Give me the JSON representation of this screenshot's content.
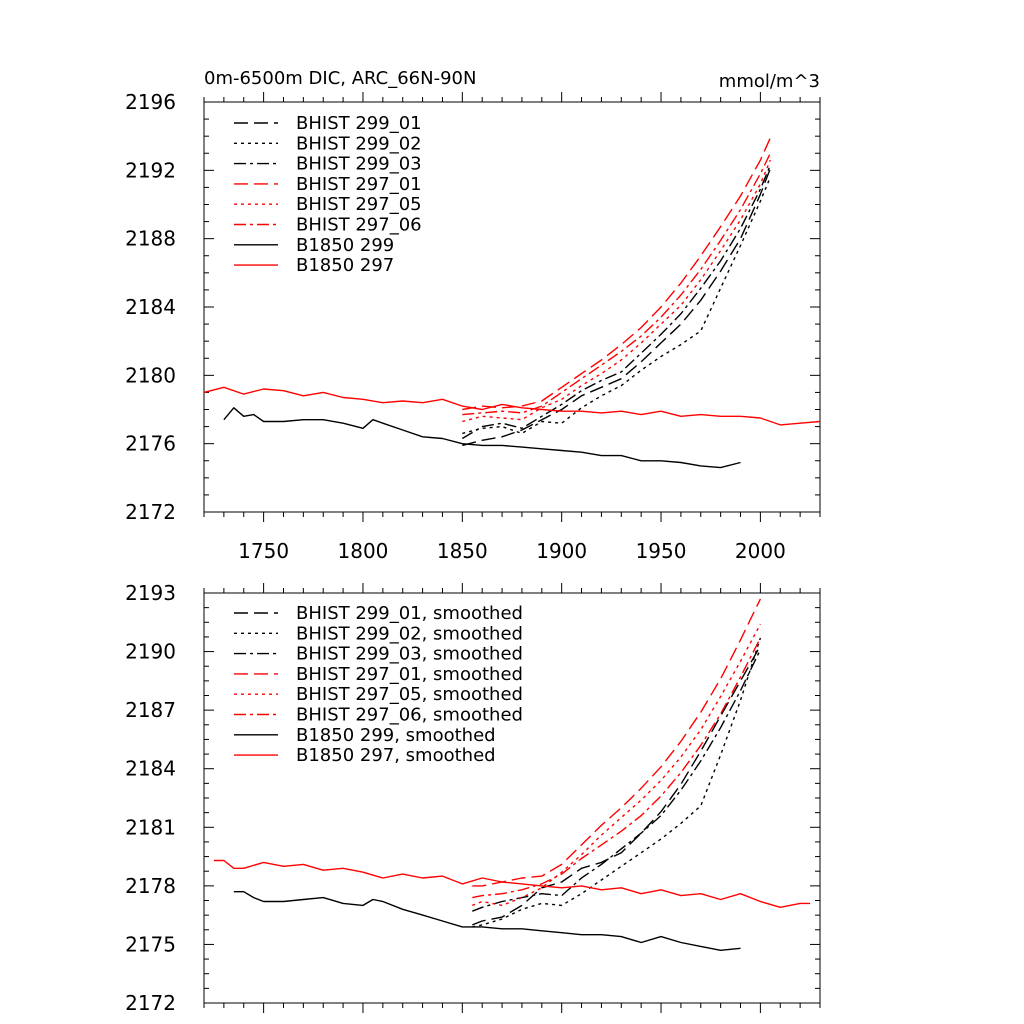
{
  "chart_data": [
    {
      "type": "line",
      "title": "0m-6500m DIC, ARC_66N-90N",
      "units": "mmol/m^3",
      "xlabel": "",
      "ylabel": "",
      "xlim": [
        1720,
        2030
      ],
      "ylim": [
        2172,
        2196
      ],
      "xticks": [
        1750,
        1800,
        1850,
        1900,
        1950,
        2000
      ],
      "yticks": [
        2172,
        2176,
        2180,
        2184,
        2188,
        2192,
        2196
      ],
      "legend_position": "top-left",
      "grid": false,
      "series": [
        {
          "name": "BHIST 299_01",
          "color": "#000000",
          "dash": "dash",
          "x": [
            1850,
            1860,
            1870,
            1880,
            1890,
            1900,
            1910,
            1920,
            1930,
            1940,
            1950,
            1960,
            1970,
            1980,
            1990,
            2000,
            2005
          ],
          "y": [
            2175.9,
            2176.2,
            2176.4,
            2176.8,
            2177.4,
            2178.0,
            2178.8,
            2179.3,
            2179.8,
            2180.8,
            2181.9,
            2183.0,
            2184.4,
            2186.1,
            2188.0,
            2190.6,
            2192.1
          ]
        },
        {
          "name": "BHIST 299_02",
          "color": "#000000",
          "dash": "dot",
          "x": [
            1850,
            1860,
            1870,
            1880,
            1890,
            1900,
            1910,
            1920,
            1930,
            1940,
            1950,
            1960,
            1970,
            1980,
            1990,
            2000,
            2005
          ],
          "y": [
            2176.6,
            2176.9,
            2177.0,
            2176.6,
            2177.3,
            2177.2,
            2178.1,
            2178.8,
            2179.4,
            2180.3,
            2181.1,
            2181.8,
            2182.6,
            2185.1,
            2187.6,
            2190.2,
            2191.6
          ]
        },
        {
          "name": "BHIST 299_03",
          "color": "#000000",
          "dash": "dashdot",
          "x": [
            1850,
            1860,
            1870,
            1880,
            1890,
            1900,
            1910,
            1920,
            1930,
            1940,
            1950,
            1960,
            1970,
            1980,
            1990,
            2000,
            2005
          ],
          "y": [
            2176.3,
            2177.0,
            2177.2,
            2176.9,
            2177.6,
            2178.3,
            2179.1,
            2179.7,
            2180.2,
            2181.3,
            2182.4,
            2183.6,
            2185.1,
            2186.7,
            2188.6,
            2190.9,
            2192.3
          ]
        },
        {
          "name": "BHIST 297_01",
          "color": "#ff0000",
          "dash": "dash",
          "x": [
            1850,
            1860,
            1870,
            1880,
            1890,
            1900,
            1910,
            1920,
            1930,
            1940,
            1950,
            1960,
            1970,
            1980,
            1990,
            2000,
            2005
          ],
          "y": [
            2178.0,
            2178.2,
            2178.1,
            2178.2,
            2178.5,
            2179.3,
            2180.1,
            2180.9,
            2181.8,
            2182.8,
            2184.0,
            2185.4,
            2187.0,
            2188.7,
            2190.5,
            2192.6,
            2193.9
          ]
        },
        {
          "name": "BHIST 297_05",
          "color": "#ff0000",
          "dash": "dot",
          "x": [
            1850,
            1860,
            1870,
            1880,
            1890,
            1900,
            1910,
            1920,
            1930,
            1940,
            1950,
            1960,
            1970,
            1980,
            1990,
            2000,
            2005
          ],
          "y": [
            2177.3,
            2177.6,
            2177.5,
            2177.4,
            2178.1,
            2178.6,
            2179.4,
            2180.1,
            2180.9,
            2181.9,
            2183.0,
            2184.1,
            2185.6,
            2187.3,
            2189.1,
            2191.2,
            2192.6
          ]
        },
        {
          "name": "BHIST 297_06",
          "color": "#ff0000",
          "dash": "dashdot",
          "x": [
            1850,
            1860,
            1870,
            1880,
            1890,
            1900,
            1910,
            1920,
            1930,
            1940,
            1950,
            1960,
            1970,
            1980,
            1990,
            2000,
            2005
          ],
          "y": [
            2177.7,
            2177.8,
            2177.9,
            2177.8,
            2178.2,
            2179.0,
            2179.8,
            2180.6,
            2181.4,
            2182.3,
            2183.4,
            2184.7,
            2186.2,
            2187.9,
            2189.7,
            2191.8,
            2193.0
          ]
        },
        {
          "name": "B1850 299",
          "color": "#000000",
          "dash": "solid",
          "x": [
            1730,
            1735,
            1740,
            1745,
            1750,
            1760,
            1770,
            1780,
            1790,
            1800,
            1805,
            1810,
            1820,
            1830,
            1840,
            1850,
            1860,
            1870,
            1880,
            1890,
            1900,
            1910,
            1920,
            1930,
            1940,
            1950,
            1960,
            1970,
            1980,
            1990
          ],
          "y": [
            2177.4,
            2178.1,
            2177.6,
            2177.7,
            2177.3,
            2177.3,
            2177.4,
            2177.4,
            2177.2,
            2176.9,
            2177.4,
            2177.2,
            2176.8,
            2176.4,
            2176.3,
            2176.0,
            2175.9,
            2175.9,
            2175.8,
            2175.7,
            2175.6,
            2175.5,
            2175.3,
            2175.3,
            2175.0,
            2175.0,
            2174.9,
            2174.7,
            2174.6,
            2174.9
          ]
        },
        {
          "name": "B1850 297",
          "color": "#ff0000",
          "dash": "solid",
          "x": [
            1720,
            1730,
            1740,
            1750,
            1760,
            1770,
            1780,
            1790,
            1800,
            1810,
            1820,
            1830,
            1840,
            1850,
            1860,
            1870,
            1880,
            1890,
            1900,
            1910,
            1920,
            1930,
            1940,
            1950,
            1960,
            1970,
            1980,
            1990,
            2000,
            2010,
            2020,
            2030
          ],
          "y": [
            2179.0,
            2179.3,
            2178.9,
            2179.2,
            2179.1,
            2178.8,
            2179.0,
            2178.7,
            2178.6,
            2178.4,
            2178.5,
            2178.4,
            2178.6,
            2178.2,
            2178.0,
            2178.3,
            2178.1,
            2178.0,
            2177.9,
            2177.9,
            2177.8,
            2177.9,
            2177.7,
            2177.9,
            2177.6,
            2177.7,
            2177.6,
            2177.6,
            2177.5,
            2177.1,
            2177.2,
            2177.3
          ]
        }
      ]
    },
    {
      "type": "line",
      "title": "",
      "xlabel": "",
      "ylabel": "",
      "xlim": [
        1720,
        2030
      ],
      "ylim": [
        2172,
        2193
      ],
      "xticks": [
        1750,
        1800,
        1850,
        1900,
        1950,
        2000
      ],
      "yticks": [
        2172,
        2175,
        2178,
        2181,
        2184,
        2187,
        2190,
        2193
      ],
      "legend_position": "top-left",
      "grid": false,
      "series": [
        {
          "name": "BHIST 299_01, smoothed",
          "color": "#000000",
          "dash": "dash",
          "x": [
            1855,
            1860,
            1870,
            1880,
            1890,
            1900,
            1910,
            1920,
            1930,
            1940,
            1950,
            1960,
            1970,
            1980,
            1990,
            2000
          ],
          "y": [
            2176.0,
            2176.2,
            2176.4,
            2177.0,
            2177.9,
            2178.2,
            2178.9,
            2179.2,
            2179.7,
            2180.7,
            2181.8,
            2183.2,
            2184.9,
            2186.7,
            2188.5,
            2190.3
          ]
        },
        {
          "name": "BHIST 299_02, smoothed",
          "color": "#000000",
          "dash": "dot",
          "x": [
            1855,
            1860,
            1870,
            1880,
            1890,
            1900,
            1910,
            1920,
            1930,
            1940,
            1950,
            1960,
            1970,
            1980,
            1990,
            2000
          ],
          "y": [
            2175.9,
            2176.0,
            2176.3,
            2176.8,
            2177.1,
            2177.0,
            2177.6,
            2178.3,
            2179.0,
            2179.7,
            2180.4,
            2181.2,
            2182.1,
            2184.7,
            2187.5,
            2190.7
          ]
        },
        {
          "name": "BHIST 299_03, smoothed",
          "color": "#000000",
          "dash": "dashdot",
          "x": [
            1855,
            1860,
            1870,
            1880,
            1890,
            1900,
            1910,
            1920,
            1930,
            1940,
            1950,
            1960,
            1970,
            1980,
            1990,
            2000
          ],
          "y": [
            2176.7,
            2176.9,
            2177.2,
            2177.4,
            2177.6,
            2177.5,
            2178.4,
            2179.1,
            2179.9,
            2180.7,
            2181.6,
            2182.9,
            2184.4,
            2186.1,
            2188.0,
            2190.1
          ]
        },
        {
          "name": "BHIST 297_01, smoothed",
          "color": "#ff0000",
          "dash": "dash",
          "x": [
            1855,
            1860,
            1870,
            1880,
            1890,
            1900,
            1910,
            1920,
            1930,
            1940,
            1950,
            1960,
            1970,
            1980,
            1990,
            2000
          ],
          "y": [
            2178.0,
            2178.0,
            2178.2,
            2178.4,
            2178.5,
            2179.1,
            2180.1,
            2181.1,
            2182.0,
            2183.0,
            2184.1,
            2185.4,
            2186.9,
            2188.6,
            2190.6,
            2192.7
          ]
        },
        {
          "name": "BHIST 297_05, smoothed",
          "color": "#ff0000",
          "dash": "dot",
          "x": [
            1855,
            1860,
            1870,
            1880,
            1890,
            1900,
            1910,
            1920,
            1930,
            1940,
            1950,
            1960,
            1970,
            1980,
            1990,
            2000
          ],
          "y": [
            2177.0,
            2177.2,
            2177.0,
            2177.4,
            2177.9,
            2178.7,
            2179.6,
            2180.6,
            2181.5,
            2182.4,
            2183.4,
            2184.6,
            2186.0,
            2187.7,
            2189.5,
            2191.4
          ]
        },
        {
          "name": "BHIST 297_06, smoothed",
          "color": "#ff0000",
          "dash": "dashdot",
          "x": [
            1855,
            1860,
            1870,
            1880,
            1890,
            1900,
            1910,
            1920,
            1930,
            1940,
            1950,
            1960,
            1970,
            1980,
            1990,
            2000
          ],
          "y": [
            2177.4,
            2177.5,
            2177.6,
            2177.8,
            2178.1,
            2178.6,
            2179.4,
            2180.1,
            2180.8,
            2181.6,
            2182.6,
            2183.8,
            2185.2,
            2186.8,
            2188.7,
            2190.7
          ]
        },
        {
          "name": "B1850 299, smoothed",
          "color": "#000000",
          "dash": "solid",
          "x": [
            1735,
            1740,
            1745,
            1750,
            1760,
            1770,
            1780,
            1790,
            1800,
            1805,
            1810,
            1820,
            1830,
            1840,
            1850,
            1860,
            1870,
            1880,
            1890,
            1900,
            1910,
            1920,
            1930,
            1940,
            1950,
            1960,
            1970,
            1980,
            1990
          ],
          "y": [
            2177.7,
            2177.7,
            2177.4,
            2177.2,
            2177.2,
            2177.3,
            2177.4,
            2177.1,
            2177.0,
            2177.3,
            2177.2,
            2176.8,
            2176.5,
            2176.2,
            2175.9,
            2175.9,
            2175.8,
            2175.8,
            2175.7,
            2175.6,
            2175.5,
            2175.5,
            2175.4,
            2175.1,
            2175.4,
            2175.1,
            2174.9,
            2174.7,
            2174.8
          ]
        },
        {
          "name": "B1850 297, smoothed",
          "color": "#ff0000",
          "dash": "solid",
          "x": [
            1725,
            1730,
            1735,
            1740,
            1750,
            1760,
            1770,
            1780,
            1790,
            1800,
            1810,
            1820,
            1830,
            1840,
            1850,
            1860,
            1870,
            1880,
            1890,
            1900,
            1910,
            1920,
            1930,
            1940,
            1950,
            1960,
            1970,
            1980,
            1990,
            2000,
            2010,
            2020,
            2025
          ],
          "y": [
            2179.3,
            2179.3,
            2178.9,
            2178.9,
            2179.2,
            2179.0,
            2179.1,
            2178.8,
            2178.9,
            2178.7,
            2178.4,
            2178.6,
            2178.4,
            2178.5,
            2178.1,
            2178.4,
            2178.2,
            2178.1,
            2178.0,
            2177.9,
            2178.0,
            2177.8,
            2177.9,
            2177.6,
            2177.8,
            2177.5,
            2177.6,
            2177.3,
            2177.6,
            2177.2,
            2176.9,
            2177.1,
            2177.1
          ]
        }
      ]
    }
  ]
}
